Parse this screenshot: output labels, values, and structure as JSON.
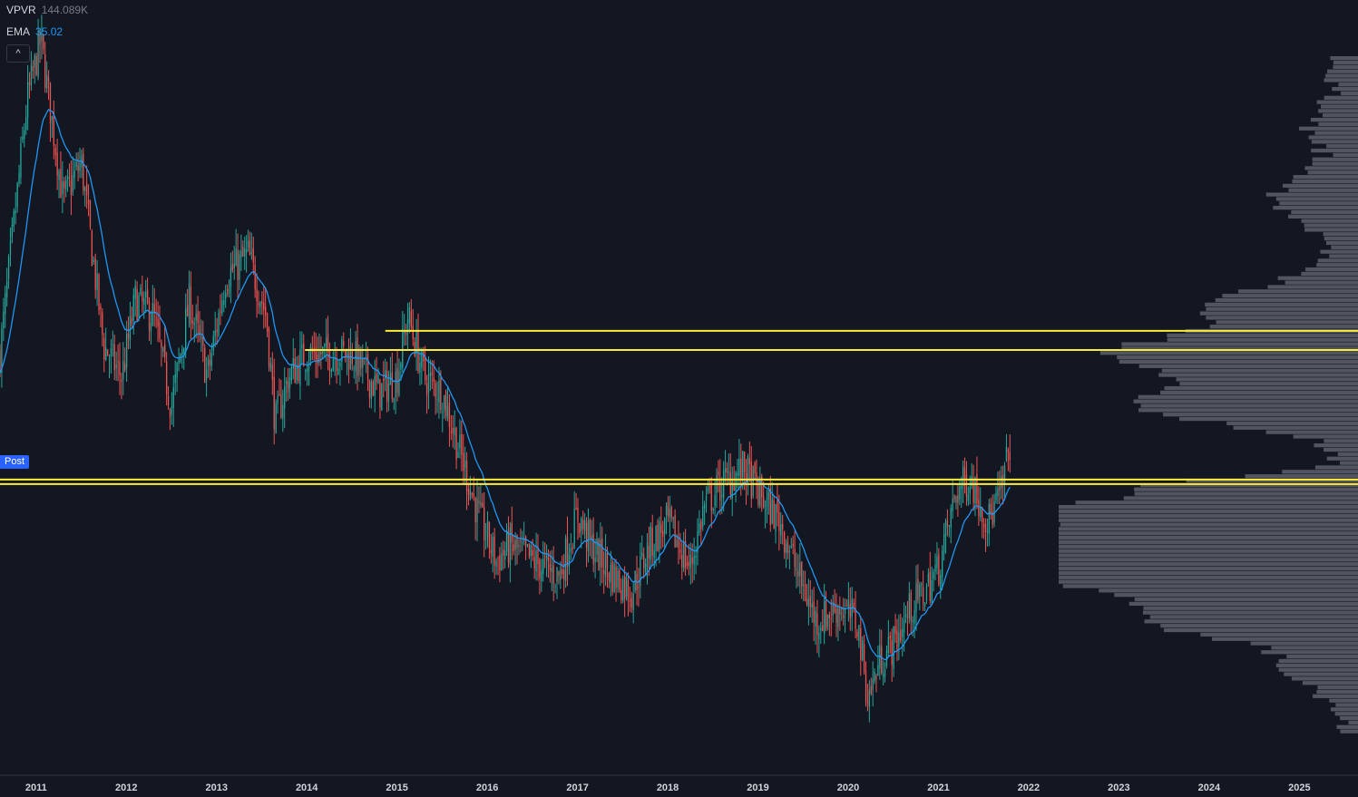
{
  "legend": {
    "vpvr_label": "VPVR",
    "vpvr_value": "144.089K",
    "ema_label": "EMA",
    "ema_value": "35.02"
  },
  "collapse_icon": "chevron-up-icon",
  "collapse_glyph": "^",
  "post_badge": "Post",
  "colors": {
    "background": "#131722",
    "up_bar": "#26a69a",
    "down_bar": "#ef5350",
    "ema": "#2196f3",
    "level_line": "#ffeb3b",
    "volume_profile": "#5d606b"
  },
  "chart_data": {
    "type": "candlestick",
    "x_axis_ticks": [
      "2011",
      "2012",
      "2013",
      "2014",
      "2015",
      "2016",
      "2017",
      "2018",
      "2019",
      "2020",
      "2021",
      "2022",
      "2023",
      "2024",
      "2025"
    ],
    "x_range": [
      2010.6,
      2025.65
    ],
    "y_range": [
      0,
      100
    ],
    "anchors": [
      [
        2010.6,
        55
      ],
      [
        2010.9,
        88
      ],
      [
        2011.05,
        96
      ],
      [
        2011.3,
        75
      ],
      [
        2011.5,
        80
      ],
      [
        2011.75,
        56
      ],
      [
        2011.95,
        52
      ],
      [
        2012.1,
        62
      ],
      [
        2012.3,
        60
      ],
      [
        2012.5,
        48
      ],
      [
        2012.7,
        62
      ],
      [
        2012.9,
        52
      ],
      [
        2013.1,
        65
      ],
      [
        2013.35,
        68
      ],
      [
        2013.55,
        60
      ],
      [
        2013.65,
        46
      ],
      [
        2013.8,
        52
      ],
      [
        2014.0,
        55
      ],
      [
        2014.3,
        55
      ],
      [
        2014.5,
        55
      ],
      [
        2014.8,
        50
      ],
      [
        2015.0,
        52
      ],
      [
        2015.12,
        60
      ],
      [
        2015.3,
        52
      ],
      [
        2015.5,
        50
      ],
      [
        2015.7,
        42
      ],
      [
        2015.9,
        34
      ],
      [
        2016.1,
        28
      ],
      [
        2016.25,
        30
      ],
      [
        2016.5,
        28
      ],
      [
        2016.8,
        26
      ],
      [
        2017.0,
        34
      ],
      [
        2017.15,
        30
      ],
      [
        2017.4,
        26
      ],
      [
        2017.6,
        24
      ],
      [
        2017.8,
        30
      ],
      [
        2018.0,
        33
      ],
      [
        2018.25,
        27
      ],
      [
        2018.4,
        35
      ],
      [
        2018.6,
        38
      ],
      [
        2018.85,
        40
      ],
      [
        2019.05,
        36
      ],
      [
        2019.25,
        33
      ],
      [
        2019.45,
        26
      ],
      [
        2019.65,
        20
      ],
      [
        2019.9,
        22
      ],
      [
        2020.1,
        20
      ],
      [
        2020.22,
        10
      ],
      [
        2020.35,
        15
      ],
      [
        2020.5,
        17
      ],
      [
        2020.7,
        22
      ],
      [
        2020.85,
        24
      ],
      [
        2021.0,
        27
      ],
      [
        2021.2,
        37
      ],
      [
        2021.35,
        39
      ],
      [
        2021.55,
        33
      ],
      [
        2021.7,
        37
      ],
      [
        2021.8,
        44
      ]
    ],
    "ema_length_weeks": 20,
    "levels": [
      {
        "price": 58.0,
        "x_start": 2014.87
      },
      {
        "price": 55.5,
        "x_start": 2013.98
      },
      {
        "price": 38.6,
        "x_start": 2010.6
      },
      {
        "price": 38.0,
        "x_start": 2010.6
      }
    ]
  }
}
